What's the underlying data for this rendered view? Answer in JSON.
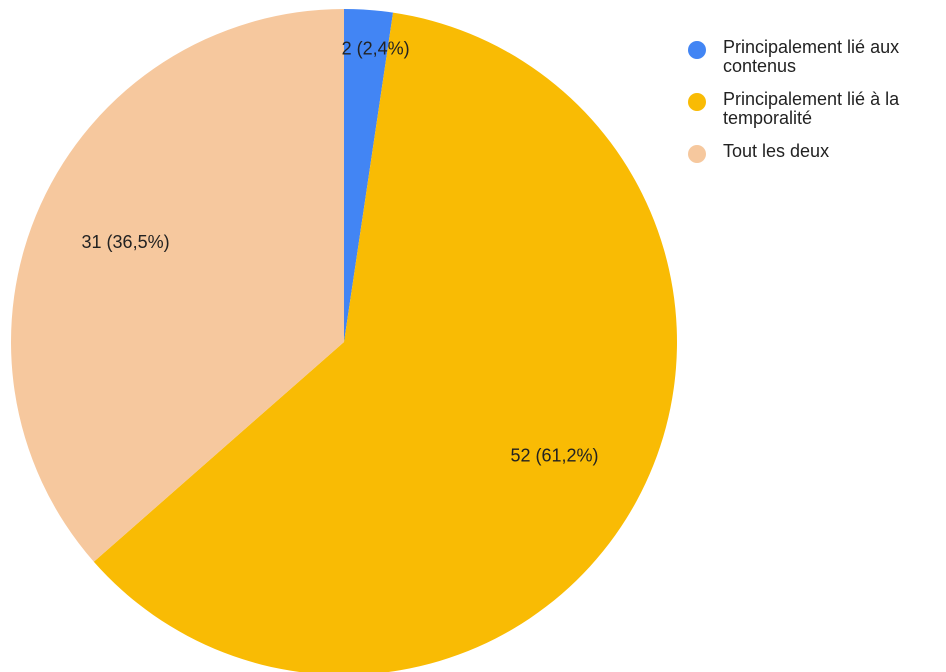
{
  "chart_data": {
    "type": "pie",
    "categories": [
      "Principalement lié aux contenus",
      "Principalement lié à la temporalité",
      "Tout les deux"
    ],
    "values": [
      2,
      52,
      31
    ],
    "percentages": [
      "2,4%",
      "61,2%",
      "36,5%"
    ],
    "data_labels": [
      "2 (2,4%)",
      "52 (61,2%)",
      "31 (36,5%)"
    ],
    "colors": [
      "#4285f4",
      "#f9bb04",
      "#f6c89e"
    ],
    "legend_placement": "right"
  },
  "legend": {
    "items": [
      {
        "label": "Principalement lié aux contenus",
        "color": "#4285f4"
      },
      {
        "label": "Principalement lié à la temporalité",
        "color": "#f9bb04"
      },
      {
        "label": "Tout les deux",
        "color": "#f6c89e"
      }
    ]
  }
}
